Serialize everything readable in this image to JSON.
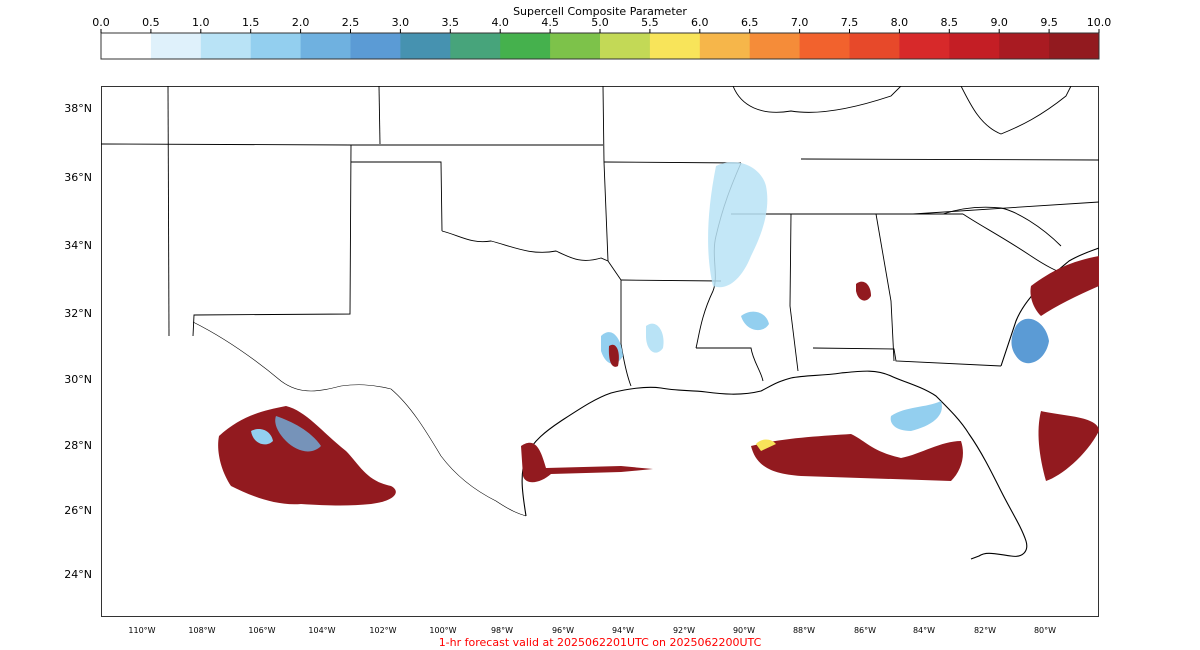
{
  "colorbar": {
    "title": "Supercell Composite Parameter",
    "ticks": [
      "0.0",
      "0.5",
      "1.0",
      "1.5",
      "2.0",
      "2.5",
      "3.0",
      "3.5",
      "4.0",
      "4.5",
      "5.0",
      "5.5",
      "6.0",
      "6.5",
      "7.0",
      "7.5",
      "8.0",
      "8.5",
      "9.0",
      "9.5",
      "10.0"
    ],
    "colors": [
      "#ffffff",
      "#dff1fb",
      "#b9e3f6",
      "#93cfef",
      "#6fb1e0",
      "#5b9bd5",
      "#4692b0",
      "#47a47b",
      "#45b14d",
      "#7dc24a",
      "#c3d956",
      "#f8e45a",
      "#f6b64a",
      "#f58c39",
      "#f2622d",
      "#e7492a",
      "#d7292a",
      "#c41e25",
      "#a91b22",
      "#921a1f"
    ]
  },
  "map": {
    "lat_labels": [
      "38°N",
      "36°N",
      "34°N",
      "32°N",
      "30°N",
      "28°N",
      "26°N",
      "24°N"
    ],
    "lon_labels": [
      "110°W",
      "108°W",
      "106°W",
      "104°W",
      "102°W",
      "100°W",
      "98°W",
      "96°W",
      "94°W",
      "92°W",
      "90°W",
      "88°W",
      "86°W",
      "84°W",
      "82°W",
      "80°W"
    ]
  },
  "footer": "1-hr forecast valid at 2025062201UTC on 2025062200UTC"
}
